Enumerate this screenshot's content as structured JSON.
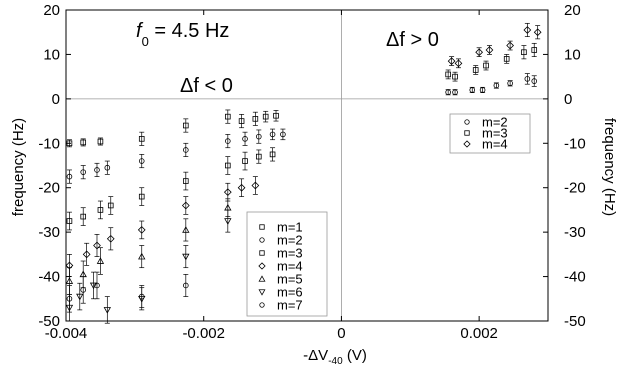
{
  "chart_data": {
    "type": "scatter",
    "xlabel_main": "-ΔV",
    "xlabel_sub": "-40",
    "xlabel_unit": " (V)",
    "ylabel_left": "frequency (Hz)",
    "ylabel_right": "frequency (Hz)",
    "xlim": [
      -0.004,
      0.003
    ],
    "ylim": [
      -50,
      20
    ],
    "x_ticks": [
      {
        "value": -0.004,
        "label": "-0.004"
      },
      {
        "value": -0.002,
        "label": "-0.002"
      },
      {
        "value": 0,
        "label": "0"
      },
      {
        "value": 0.002,
        "label": "0.002"
      }
    ],
    "y_ticks": [
      {
        "value": 20,
        "label": "20"
      },
      {
        "value": 10,
        "label": "10"
      },
      {
        "value": 0,
        "label": "0"
      },
      {
        "value": -10,
        "label": "-10"
      },
      {
        "value": -20,
        "label": "-20"
      },
      {
        "value": -30,
        "label": "-30"
      },
      {
        "value": -40,
        "label": "-40"
      },
      {
        "value": -50,
        "label": "-50"
      }
    ],
    "zero_lines": true,
    "annotations": {
      "f0_symbol": "f",
      "f0_sub": "0",
      "f0_value": " = 4.5 Hz",
      "neg_label": "Δf < 0",
      "pos_label": "Δf > 0"
    },
    "legend_negative": {
      "placement": "lower-center",
      "entries": [
        {
          "label": "m=1",
          "marker": "square"
        },
        {
          "label": "m=2",
          "marker": "circle"
        },
        {
          "label": "m=3",
          "marker": "square"
        },
        {
          "label": "m=4",
          "marker": "diamond"
        },
        {
          "label": "m=5",
          "marker": "triangle-up"
        },
        {
          "label": "m=6",
          "marker": "triangle-down"
        },
        {
          "label": "m=7",
          "marker": "circle"
        }
      ]
    },
    "legend_positive": {
      "placement": "upper-right",
      "entries": [
        {
          "label": "m=2",
          "marker": "circle"
        },
        {
          "label": "m=3",
          "marker": "square"
        },
        {
          "label": "m=4",
          "marker": "diamond"
        }
      ]
    },
    "series": [
      {
        "marker": "square",
        "points": [
          [
            -0.00395,
            -10,
            0.8
          ],
          [
            -0.00375,
            -9.8,
            0.8
          ],
          [
            -0.0035,
            -9.6,
            0.8
          ],
          [
            -0.0029,
            -9,
            1.5
          ],
          [
            -0.00226,
            -6,
            1.5
          ],
          [
            -0.00165,
            -4,
            1.5
          ],
          [
            -0.00145,
            -5,
            1.5
          ],
          [
            -0.00125,
            -4.5,
            1.5
          ],
          [
            -0.0011,
            -4,
            1.2
          ],
          [
            -0.00095,
            -3.8,
            1.2
          ]
        ]
      },
      {
        "marker": "circle",
        "points": [
          [
            -0.00395,
            -17.5,
            1.5
          ],
          [
            -0.00375,
            -16.5,
            1.5
          ],
          [
            -0.00355,
            -16,
            1.5
          ],
          [
            -0.0034,
            -15.5,
            1.5
          ],
          [
            -0.0029,
            -14,
            1.5
          ],
          [
            -0.00226,
            -11.5,
            1.5
          ],
          [
            -0.00165,
            -9.5,
            1.5
          ],
          [
            -0.0014,
            -9,
            1.5
          ],
          [
            -0.0012,
            -8.5,
            1.5
          ],
          [
            -0.001,
            -8,
            1.2
          ],
          [
            -0.00085,
            -8,
            1.2
          ],
          [
            0.00155,
            1.5,
            0.6
          ],
          [
            0.00165,
            1.5,
            0.6
          ],
          [
            0.0019,
            2,
            0.6
          ],
          [
            0.00205,
            2,
            0.6
          ],
          [
            0.00225,
            3,
            0.6
          ],
          [
            0.00245,
            3.5,
            0.6
          ],
          [
            0.0027,
            4.5,
            1.2
          ],
          [
            0.0028,
            4,
            1.2
          ]
        ]
      },
      {
        "marker": "square",
        "points": [
          [
            -0.00395,
            -27.5,
            2
          ],
          [
            -0.00375,
            -26.5,
            2
          ],
          [
            -0.0035,
            -25,
            2
          ],
          [
            -0.00335,
            -24,
            2
          ],
          [
            -0.0029,
            -22,
            2
          ],
          [
            -0.00226,
            -18.5,
            2
          ],
          [
            -0.00165,
            -15,
            2
          ],
          [
            -0.0014,
            -14,
            2
          ],
          [
            -0.0012,
            -13,
            1.5
          ],
          [
            -0.001,
            -12.5,
            1.5
          ],
          [
            0.00155,
            5.5,
            1
          ],
          [
            0.00165,
            5,
            1
          ],
          [
            0.00195,
            6.5,
            1
          ],
          [
            0.0021,
            7.5,
            1
          ],
          [
            0.0024,
            9,
            1
          ],
          [
            0.00265,
            10.5,
            1.5
          ],
          [
            0.0028,
            11,
            1.5
          ]
        ]
      },
      {
        "marker": "diamond",
        "points": [
          [
            -0.00395,
            -37.5,
            2.5
          ],
          [
            -0.0037,
            -35,
            2.5
          ],
          [
            -0.00355,
            -33,
            2.5
          ],
          [
            -0.00335,
            -31.5,
            2.5
          ],
          [
            -0.0029,
            -29.5,
            2
          ],
          [
            -0.00226,
            -24,
            2
          ],
          [
            -0.00165,
            -21,
            2
          ],
          [
            -0.00145,
            -20,
            2
          ],
          [
            -0.00125,
            -19.5,
            2
          ],
          [
            0.0016,
            8.5,
            1
          ],
          [
            0.0017,
            8,
            1
          ],
          [
            0.002,
            10.5,
            1
          ],
          [
            0.00215,
            11,
            1
          ],
          [
            0.00245,
            12,
            1
          ],
          [
            0.0027,
            15.5,
            1.5
          ],
          [
            0.00285,
            15,
            1.5
          ]
        ]
      },
      {
        "marker": "triangle-up",
        "points": [
          [
            -0.00395,
            -41,
            3
          ],
          [
            -0.00375,
            -39.5,
            3
          ],
          [
            -0.0035,
            -36.5,
            3
          ],
          [
            -0.0029,
            -35.5,
            2.5
          ],
          [
            -0.00226,
            -29.5,
            2.5
          ],
          [
            -0.00165,
            -24.5,
            2
          ]
        ]
      },
      {
        "marker": "triangle-down",
        "points": [
          [
            -0.00395,
            -47,
            3
          ],
          [
            -0.0038,
            -44.5,
            3
          ],
          [
            -0.0036,
            -42,
            3
          ],
          [
            -0.0034,
            -47.5,
            3
          ],
          [
            -0.0029,
            -45,
            2.5
          ],
          [
            -0.00226,
            -35.5,
            2.5
          ],
          [
            -0.00165,
            -27.5,
            2.5
          ]
        ]
      },
      {
        "marker": "circle",
        "points": [
          [
            -0.00395,
            -45,
            3
          ],
          [
            -0.00375,
            -43,
            3
          ],
          [
            -0.00355,
            -42,
            3
          ],
          [
            -0.0029,
            -44.5,
            2.5
          ],
          [
            -0.00226,
            -42,
            2.5
          ]
        ]
      }
    ]
  }
}
